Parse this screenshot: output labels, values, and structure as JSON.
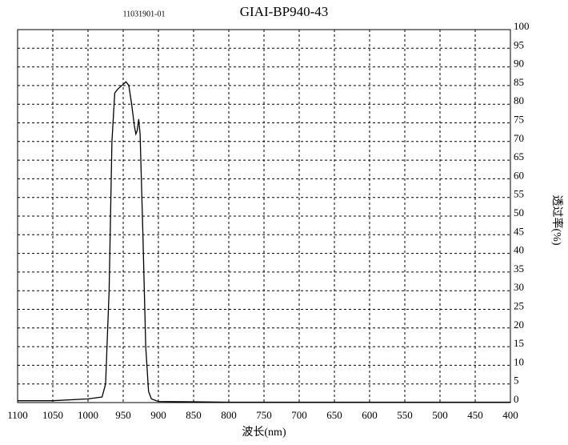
{
  "chart_data": {
    "type": "line",
    "title": "GIAI-BP940-43",
    "subtitle": "11031901-01",
    "x_label": "波长(nm)",
    "y_label": "透过率(%)",
    "xlim": [
      1100,
      400
    ],
    "ylim": [
      0,
      100
    ],
    "xticks": [
      1100,
      1050,
      1000,
      950,
      900,
      850,
      800,
      750,
      700,
      650,
      600,
      550,
      500,
      450,
      400
    ],
    "yticks": [
      0,
      5,
      10,
      15,
      20,
      25,
      30,
      35,
      40,
      45,
      50,
      55,
      60,
      65,
      70,
      75,
      80,
      85,
      90,
      95,
      100
    ],
    "grid": true,
    "series": [
      {
        "name": "GIAI-BP940-43",
        "color": "#000000",
        "x": [
          1100,
          1050,
          1000,
          980,
          975,
          970,
          966,
          962,
          958,
          952,
          946,
          942,
          938,
          934,
          932,
          930,
          928,
          926,
          922,
          918,
          914,
          910,
          900,
          850,
          800,
          700,
          600,
          500,
          400
        ],
        "values": [
          0.5,
          0.5,
          1,
          1.5,
          5,
          30,
          70,
          83,
          84,
          85,
          86,
          85,
          80,
          74,
          72,
          73,
          76,
          72,
          45,
          15,
          3,
          1,
          0.3,
          0.2,
          0.1,
          0.1,
          0.1,
          0.1,
          0.1
        ]
      }
    ]
  }
}
